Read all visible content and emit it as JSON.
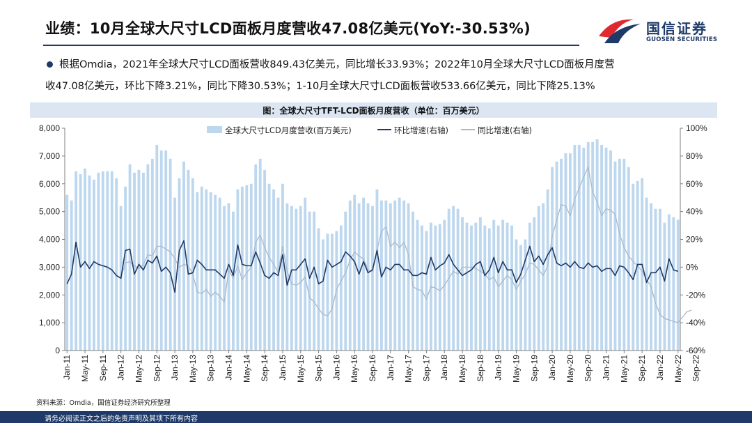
{
  "header": {
    "title": "业绩：10月全球大尺寸LCD面板月度营收47.08亿美元(YoY:-30.53%)",
    "logo_cn": "国信证券",
    "logo_en": "GUOSEN SECURITIES"
  },
  "summary": {
    "line1": "根据Omdia，2021年全球大尺寸LCD面板营收849.43亿美元，同比增长33.93%；2022年10月全球大尺寸LCD面板月度营",
    "line2": "收47.08亿美元，环比下降3.21%，同比下降30.53%；1-10月全球大尺寸LCD面板营收533.66亿美元，同比下降25.13%"
  },
  "chart_title": "图：全球大尺寸TFT-LCD面板月度营收（单位：百万美元）",
  "source": "资料来源：Omdia，国信证券经济研究所整理",
  "footer": "请务必阅读正文之后的免责声明及其项下所有内容",
  "colors": {
    "bar": "#bdd7ee",
    "mom": "#1f3a68",
    "yoy": "#a9b9cc",
    "brand": "#1f3a68",
    "accent": "#e0282e"
  },
  "chart_data": {
    "type": "bar",
    "title": "图：全球大尺寸TFT-LCD面板月度营收（单位：百万美元）",
    "ylim_left": [
      0,
      8000
    ],
    "ylim_right": [
      -60,
      100
    ],
    "left_ticks": [
      "0",
      "1,000",
      "2,000",
      "3,000",
      "4,000",
      "5,000",
      "6,000",
      "7,000",
      "8,000"
    ],
    "right_ticks": [
      "-60%",
      "-40%",
      "-20%",
      "0%",
      "20%",
      "40%",
      "60%",
      "80%",
      "100%"
    ],
    "x_tick_labels": [
      "Jan-11",
      "May-11",
      "Sep-11",
      "Jan-12",
      "May-12",
      "Sep-12",
      "Jan-13",
      "May-13",
      "Sep-13",
      "Jan-14",
      "May-14",
      "Sep-14",
      "Jan-15",
      "May-15",
      "Sep-15",
      "Jan-16",
      "May-16",
      "Sep-16",
      "Jan-17",
      "May-17",
      "Sep-17",
      "Jan-18",
      "May-18",
      "Sep-18",
      "Jan-19",
      "May-19",
      "Sep-19",
      "Jan-20",
      "May-20",
      "Sep-20",
      "Jan-21",
      "May-21",
      "Sep-21",
      "Jan-22",
      "May-22",
      "Sep-22"
    ],
    "legend": [
      "全球大尺寸LCD月度营收(百万美元)",
      "环比增速(右轴)",
      "同比增速(右轴)"
    ],
    "legend_placement": "top",
    "series": [
      {
        "name": "全球大尺寸LCD月度营收(百万美元)",
        "axis": "left",
        "type": "bar",
        "values": [
          5600,
          5400,
          6450,
          6350,
          6550,
          6300,
          6150,
          6400,
          6450,
          6450,
          6450,
          6200,
          5200,
          5900,
          6700,
          6400,
          6500,
          6400,
          6700,
          6900,
          7400,
          7200,
          7200,
          6900,
          5500,
          6200,
          6800,
          6500,
          6200,
          5700,
          5900,
          5800,
          5700,
          5600,
          5500,
          5200,
          5300,
          5000,
          5800,
          5900,
          5950,
          6000,
          6700,
          6900,
          6500,
          6000,
          5800,
          5500,
          6000,
          5300,
          5200,
          5100,
          5200,
          5500,
          5000,
          5000,
          4400,
          4000,
          4200,
          4200,
          4300,
          4500,
          5000,
          5400,
          5600,
          5300,
          5500,
          5300,
          5200,
          5800,
          5400,
          5400,
          5300,
          5400,
          5500,
          5400,
          5300,
          5000,
          4700,
          4500,
          4300,
          4600,
          4500,
          4550,
          4700,
          5100,
          5200,
          5100,
          4800,
          4600,
          4500,
          4600,
          4800,
          4500,
          4400,
          4700,
          4500,
          4700,
          4600,
          4500,
          4000,
          3800,
          4000,
          4600,
          4800,
          5200,
          5300,
          5800,
          6600,
          6800,
          6900,
          7100,
          7100,
          7400,
          7400,
          7300,
          7500,
          7500,
          7600,
          7400,
          7300,
          7200,
          6800,
          6900,
          6900,
          6600,
          6000,
          6100,
          6200,
          5500,
          5300,
          5100,
          5100,
          4600,
          4900,
          4800,
          4710
        ]
      },
      {
        "name": "环比增速(右轴)",
        "axis": "right",
        "type": "line",
        "values": [
          -12,
          -5,
          18,
          0,
          4,
          -1,
          4,
          2,
          1,
          0,
          -2,
          -6,
          -8,
          12,
          13,
          -5,
          2,
          -2,
          5,
          3,
          8,
          -3,
          0,
          -4,
          -18,
          12,
          19,
          -5,
          -4,
          5,
          2,
          -2,
          -2,
          -2,
          -5,
          -8,
          2,
          -6,
          16,
          2,
          1,
          1,
          11,
          3,
          -6,
          -8,
          -4,
          -6,
          9,
          -13,
          -2,
          -2,
          2,
          6,
          -8,
          0,
          -12,
          -10,
          5,
          0,
          2,
          4,
          11,
          8,
          4,
          -5,
          4,
          -4,
          -2,
          12,
          -7,
          0,
          -2,
          2,
          2,
          -2,
          -2,
          -6,
          -6,
          -4,
          -5,
          7,
          -2,
          1,
          3,
          9,
          2,
          -2,
          -6,
          -4,
          -2,
          2,
          4,
          -6,
          -2,
          7,
          -4,
          4,
          -2,
          -2,
          -11,
          -5,
          5,
          15,
          4,
          8,
          2,
          9,
          14,
          3,
          1,
          3,
          0,
          4,
          0,
          -1,
          3,
          0,
          1,
          -3,
          -1,
          -1,
          -6,
          1,
          0,
          -4,
          -9,
          2,
          2,
          -11,
          -4,
          -4,
          0,
          -10,
          6,
          -2,
          -3
        ]
      },
      {
        "name": "同比增速(右轴)",
        "axis": "right",
        "type": "line",
        "values": [
          null,
          null,
          null,
          null,
          null,
          null,
          null,
          null,
          null,
          null,
          null,
          null,
          -7,
          3,
          4,
          1,
          -1,
          2,
          9,
          8,
          15,
          15,
          13,
          11,
          6,
          0,
          2,
          1,
          -5,
          -18,
          -19,
          -16,
          -21,
          -18,
          -21,
          -25,
          -2,
          -8,
          1,
          -9,
          -4,
          0,
          18,
          23,
          14,
          7,
          2,
          -4,
          15,
          -3,
          -12,
          -13,
          -11,
          -7,
          -22,
          -25,
          -30,
          -34,
          -35,
          -30,
          -16,
          -10,
          -4,
          5,
          11,
          8,
          6,
          -2,
          -3,
          12,
          26,
          29,
          15,
          18,
          14,
          18,
          9,
          -14,
          -16,
          -17,
          -23,
          -14,
          -15,
          -17,
          -13,
          -8,
          -3,
          -5,
          0,
          0,
          0,
          -1,
          -3,
          -5,
          -9,
          -7,
          -14,
          -10,
          -6,
          -9,
          -16,
          -10,
          -5,
          3,
          2,
          -2,
          -6,
          1,
          22,
          34,
          45,
          44,
          37,
          49,
          57,
          65,
          72,
          54,
          47,
          37,
          42,
          41,
          38,
          24,
          14,
          8,
          4,
          1,
          -3,
          -9,
          -14,
          -26,
          -34,
          -37,
          -38,
          -39,
          -40,
          -36,
          -32,
          -31
        ]
      }
    ]
  }
}
